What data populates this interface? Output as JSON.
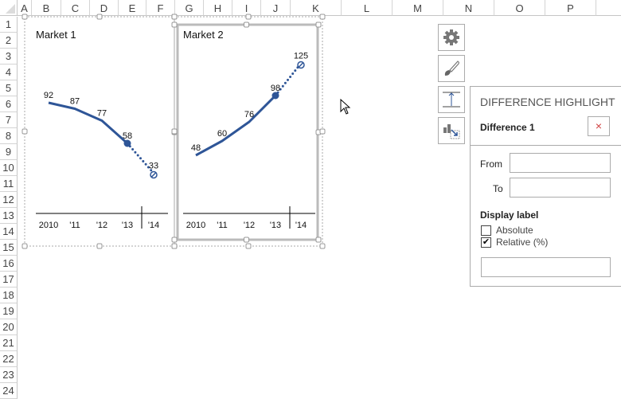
{
  "sheet": {
    "columns": [
      "A",
      "B",
      "C",
      "D",
      "E",
      "F",
      "G",
      "H",
      "I",
      "J",
      "K",
      "L",
      "M",
      "N",
      "O",
      "P"
    ],
    "rows": [
      "1",
      "2",
      "3",
      "4",
      "5",
      "6",
      "7",
      "8",
      "9",
      "10",
      "11",
      "12",
      "13",
      "14",
      "15",
      "16",
      "17",
      "18",
      "19",
      "20",
      "21",
      "22",
      "23",
      "24"
    ]
  },
  "chart_data": [
    {
      "type": "line",
      "title": "Market 1",
      "categories": [
        "2010",
        "'11",
        "'12",
        "'13",
        "'14"
      ],
      "values": [
        92,
        87,
        77,
        58,
        33
      ],
      "labels": [
        "92",
        "87",
        "77",
        "58",
        "33"
      ],
      "color": "#2e5597",
      "forecast_from": "'13"
    },
    {
      "type": "line",
      "title": "Market 2",
      "categories": [
        "2010",
        "'11",
        "'12",
        "'13",
        "'14"
      ],
      "values": [
        48,
        60,
        76,
        98,
        125
      ],
      "labels": [
        "48",
        "60",
        "76",
        "98",
        "125"
      ],
      "color": "#2e5597",
      "forecast_from": "'13"
    }
  ],
  "toolbar": {
    "icons": [
      "gear-icon",
      "brush-icon",
      "level-line-icon",
      "difference-arrow-icon"
    ]
  },
  "panel": {
    "title": "DIFFERENCE HIGHLIGHT",
    "item": "Difference 1",
    "close": "×",
    "from_label": "From",
    "from_value": "",
    "to_label": "To",
    "to_value": "",
    "display_label": "Display label",
    "absolute_label": "Absolute",
    "absolute_checked": false,
    "relative_label": "Relative (%)",
    "relative_checked": true,
    "label_value": ""
  }
}
